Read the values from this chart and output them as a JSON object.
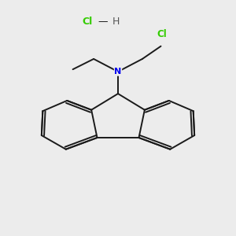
{
  "background_color": "#ececec",
  "bond_color": "#1a1a1a",
  "nitrogen_color": "#0000ee",
  "chlorine_color": "#33cc00",
  "fig_width": 3.0,
  "fig_height": 3.0,
  "dpi": 100,
  "xlim": [
    0,
    10
  ],
  "ylim": [
    0,
    10
  ]
}
